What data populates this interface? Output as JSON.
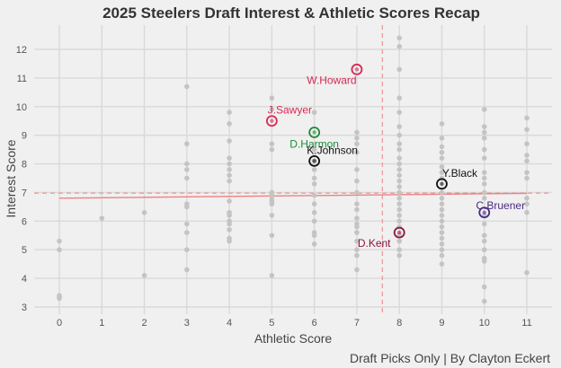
{
  "chart_data": {
    "type": "scatter",
    "title": "2025 Steelers Draft Interest & Athletic Scores Recap",
    "xlabel": "Athletic Score",
    "ylabel": "Interest Score",
    "caption": "Draft Picks Only | By Clayton Eckert",
    "xlim": [
      -0.6,
      11.6
    ],
    "ylim": [
      2.85,
      12.6
    ],
    "xticks": [
      0,
      1,
      2,
      3,
      4,
      5,
      6,
      7,
      8,
      9,
      10,
      11
    ],
    "yticks": [
      3,
      4,
      5,
      6,
      7,
      8,
      9,
      10,
      11,
      12
    ],
    "grid": true,
    "reference_lines": {
      "mean_athletic_score": 7.6,
      "mean_interest_score": 6.98,
      "trend_line": {
        "x": [
          0,
          11
        ],
        "y": [
          6.8,
          6.97
        ]
      }
    },
    "background_points": [
      [
        0,
        5.3
      ],
      [
        0,
        5.0
      ],
      [
        0,
        3.4
      ],
      [
        0,
        3.35
      ],
      [
        0,
        3.3
      ],
      [
        1,
        6.1
      ],
      [
        2,
        6.3
      ],
      [
        2,
        4.1
      ],
      [
        3,
        10.7
      ],
      [
        3,
        8.7
      ],
      [
        3,
        8.0
      ],
      [
        3,
        7.8
      ],
      [
        3,
        7.5
      ],
      [
        3,
        6.6
      ],
      [
        3,
        6.5
      ],
      [
        3,
        5.9
      ],
      [
        3,
        5.6
      ],
      [
        3,
        5.0
      ],
      [
        3,
        4.3
      ],
      [
        4,
        9.8
      ],
      [
        4,
        9.4
      ],
      [
        4,
        8.8
      ],
      [
        4,
        8.2
      ],
      [
        4,
        8.0
      ],
      [
        4,
        7.8
      ],
      [
        4,
        7.6
      ],
      [
        4,
        7.4
      ],
      [
        4,
        6.7
      ],
      [
        4,
        6.3
      ],
      [
        4,
        6.2
      ],
      [
        4,
        6.0
      ],
      [
        4,
        5.9
      ],
      [
        4,
        5.7
      ],
      [
        4,
        5.4
      ],
      [
        4,
        5.3
      ],
      [
        5,
        10.3
      ],
      [
        5,
        9.9
      ],
      [
        5,
        8.7
      ],
      [
        5,
        8.5
      ],
      [
        5,
        7.0
      ],
      [
        5,
        6.9
      ],
      [
        5,
        6.8
      ],
      [
        5,
        6.7
      ],
      [
        5,
        6.6
      ],
      [
        5,
        6.2
      ],
      [
        5,
        5.5
      ],
      [
        5,
        4.1
      ],
      [
        6,
        9.8
      ],
      [
        6,
        8.5
      ],
      [
        6,
        8.1
      ],
      [
        6,
        7.8
      ],
      [
        6,
        7.5
      ],
      [
        6,
        7.3
      ],
      [
        6,
        6.9
      ],
      [
        6,
        6.6
      ],
      [
        6,
        6.3
      ],
      [
        6,
        6.0
      ],
      [
        6,
        5.6
      ],
      [
        6,
        5.5
      ],
      [
        6,
        5.2
      ],
      [
        7,
        9.1
      ],
      [
        7,
        8.9
      ],
      [
        7,
        8.7
      ],
      [
        7,
        8.4
      ],
      [
        7,
        7.8
      ],
      [
        7,
        7.4
      ],
      [
        7,
        7.0
      ],
      [
        7,
        6.6
      ],
      [
        7,
        6.4
      ],
      [
        7,
        6.1
      ],
      [
        7,
        5.9
      ],
      [
        7,
        5.8
      ],
      [
        7,
        5.6
      ],
      [
        7,
        5.3
      ],
      [
        7,
        5.0
      ],
      [
        7,
        4.8
      ],
      [
        7,
        4.3
      ],
      [
        8,
        12.4
      ],
      [
        8,
        12.1
      ],
      [
        8,
        11.3
      ],
      [
        8,
        10.3
      ],
      [
        8,
        9.8
      ],
      [
        8,
        9.3
      ],
      [
        8,
        9.0
      ],
      [
        8,
        8.7
      ],
      [
        8,
        8.5
      ],
      [
        8,
        8.2
      ],
      [
        8,
        8.0
      ],
      [
        8,
        7.8
      ],
      [
        8,
        7.6
      ],
      [
        8,
        7.4
      ],
      [
        8,
        7.2
      ],
      [
        8,
        7.0
      ],
      [
        8,
        6.8
      ],
      [
        8,
        6.6
      ],
      [
        8,
        6.4
      ],
      [
        8,
        6.2
      ],
      [
        8,
        6.0
      ],
      [
        8,
        5.8
      ],
      [
        8,
        5.5
      ],
      [
        8,
        5.3
      ],
      [
        8,
        5.0
      ],
      [
        8,
        4.8
      ],
      [
        9,
        9.4
      ],
      [
        9,
        8.9
      ],
      [
        9,
        8.6
      ],
      [
        9,
        8.4
      ],
      [
        9,
        8.2
      ],
      [
        9,
        7.9
      ],
      [
        9,
        7.7
      ],
      [
        9,
        7.5
      ],
      [
        9,
        7.0
      ],
      [
        9,
        6.8
      ],
      [
        9,
        6.6
      ],
      [
        9,
        6.4
      ],
      [
        9,
        6.2
      ],
      [
        9,
        6.0
      ],
      [
        9,
        5.8
      ],
      [
        9,
        5.6
      ],
      [
        9,
        5.4
      ],
      [
        9,
        5.2
      ],
      [
        9,
        5.0
      ],
      [
        9,
        4.8
      ],
      [
        9,
        4.5
      ],
      [
        10,
        9.9
      ],
      [
        10,
        9.3
      ],
      [
        10,
        9.1
      ],
      [
        10,
        8.9
      ],
      [
        10,
        8.5
      ],
      [
        10,
        8.2
      ],
      [
        10,
        7.7
      ],
      [
        10,
        7.5
      ],
      [
        10,
        7.3
      ],
      [
        10,
        7.0
      ],
      [
        10,
        6.8
      ],
      [
        10,
        6.2
      ],
      [
        10,
        5.9
      ],
      [
        10,
        5.5
      ],
      [
        10,
        5.3
      ],
      [
        10,
        5.0
      ],
      [
        10,
        4.7
      ],
      [
        10,
        4.6
      ],
      [
        10,
        3.7
      ],
      [
        10,
        3.2
      ],
      [
        11,
        9.6
      ],
      [
        11,
        9.2
      ],
      [
        11,
        8.7
      ],
      [
        11,
        8.3
      ],
      [
        11,
        8.1
      ],
      [
        11,
        7.7
      ],
      [
        11,
        7.5
      ],
      [
        11,
        6.8
      ],
      [
        11,
        6.6
      ],
      [
        11,
        6.3
      ],
      [
        11,
        4.2
      ]
    ],
    "highlighted_players": [
      {
        "name": "W.Howard",
        "athletic_score": 7,
        "interest_score": 11.3,
        "color": "#d62a54",
        "icon": "ohio-state-logo-icon",
        "label_pos": "below-left"
      },
      {
        "name": "J.Sawyer",
        "athletic_score": 5,
        "interest_score": 9.5,
        "color": "#d62a54",
        "icon": "ohio-state-logo-icon",
        "label_pos": "above-right"
      },
      {
        "name": "D.Harmon",
        "athletic_score": 6,
        "interest_score": 9.1,
        "color": "#1f8a3a",
        "icon": "oregon-logo-icon",
        "label_pos": "below"
      },
      {
        "name": "K.Johnson",
        "athletic_score": 6,
        "interest_score": 8.1,
        "color": "#111111",
        "icon": "iowa-hawkeye-logo-icon",
        "label_pos": "above-right"
      },
      {
        "name": "Y.Black",
        "athletic_score": 9,
        "interest_score": 7.3,
        "color": "#111111",
        "icon": "iowa-hawkeye-logo-icon",
        "label_pos": "above-right"
      },
      {
        "name": "C.Bruener",
        "athletic_score": 10,
        "interest_score": 6.3,
        "color": "#4b2a85",
        "icon": "washington-logo-icon",
        "label_pos": "above"
      },
      {
        "name": "D.Kent",
        "athletic_score": 8,
        "interest_score": 5.6,
        "color": "#8a1538",
        "icon": "central-michigan-logo-icon",
        "label_pos": "below-left"
      }
    ],
    "colors": {
      "points": "#c4c4c4",
      "grid": "#d9d9d9",
      "reference_line": "#f08080",
      "background": "#f0f0f0"
    }
  }
}
